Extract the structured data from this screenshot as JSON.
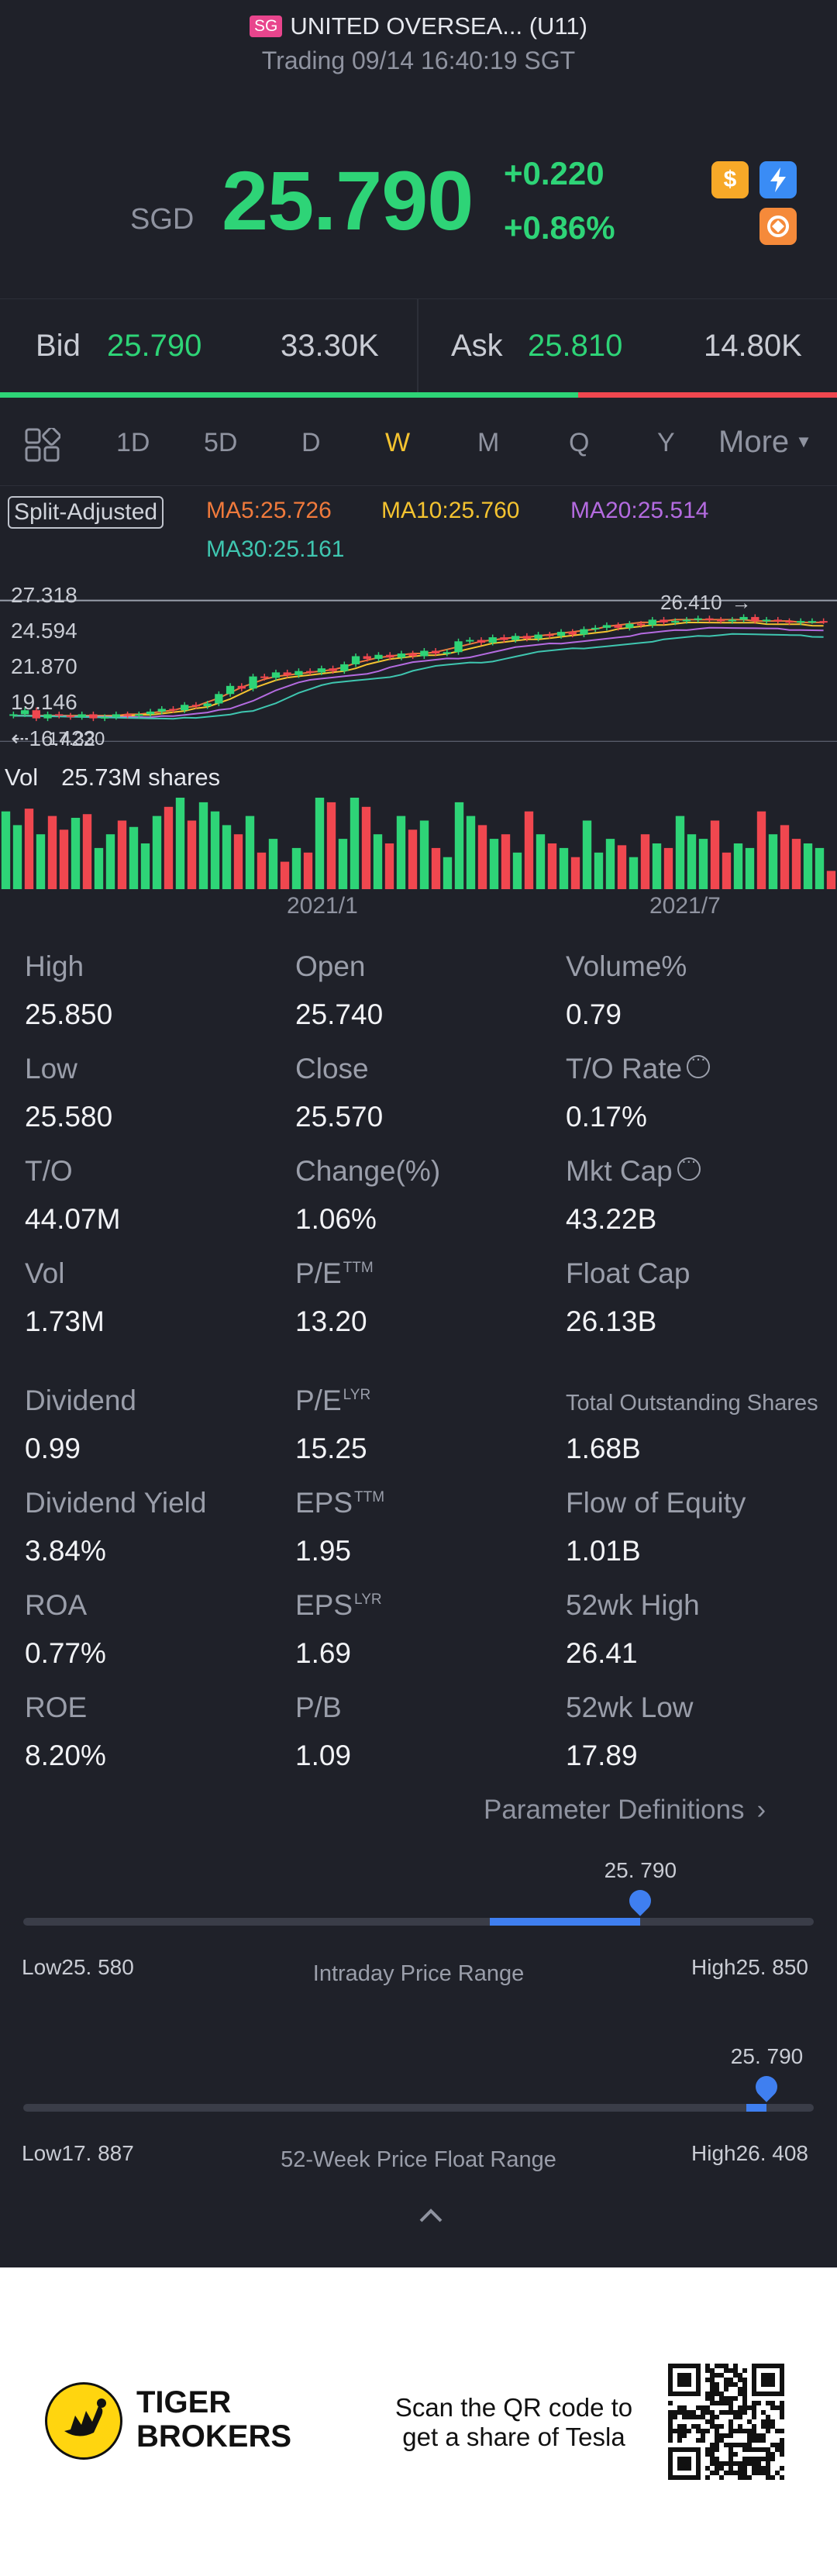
{
  "header": {
    "badge": "SG",
    "title": "UNITED OVERSEA... (U11)",
    "subtitle": "Trading 09/14 16:40:19 SGT"
  },
  "quote": {
    "currency": "SGD",
    "price": "25.790",
    "change": "+0.220",
    "change_pct": "+0.86%"
  },
  "icons": {
    "dollar": "$",
    "lightning": "lightning-icon",
    "brand": "brand-icon"
  },
  "order_book": {
    "bid_label": "Bid",
    "bid_price": "25.790",
    "bid_size": "33.30K",
    "ask_label": "Ask",
    "ask_price": "25.810",
    "ask_size": "14.80K",
    "bid_ratio": 0.69
  },
  "tabs": {
    "items": [
      "1D",
      "5D",
      "D",
      "W",
      "M",
      "Q",
      "Y"
    ],
    "active": "W",
    "more": "More"
  },
  "indicators": {
    "split": "Split-Adjusted",
    "ma5": "MA5:25.726",
    "ma10": "MA10:25.760",
    "ma20": "MA20:25.514",
    "ma30": "MA30:25.161",
    "colors": {
      "ma5": "#f07a3c",
      "ma10": "#f4c330",
      "ma20": "#b46be0",
      "ma30": "#3fc6b0"
    }
  },
  "chart_data": {
    "type": "candlestick",
    "y_ticks": [
      "27.318",
      "24.594",
      "21.870",
      "19.146"
    ],
    "y_low_overlap": "17.330",
    "y_low_overlap2": "16.422",
    "high_marker": "26.410",
    "volume_label": "Vol",
    "volume_value": "25.73M shares",
    "x_ticks": [
      "2021/1",
      "2021/7"
    ],
    "price_range": [
      16.4,
      27.3
    ],
    "closes": [
      18.9,
      19.2,
      18.6,
      18.9,
      18.8,
      18.7,
      18.9,
      18.6,
      18.7,
      18.9,
      18.8,
      18.9,
      19.1,
      19.3,
      19.2,
      19.6,
      19.5,
      19.7,
      20.4,
      21.0,
      20.8,
      21.7,
      21.6,
      22.0,
      21.8,
      22.1,
      22.0,
      22.3,
      22.1,
      22.6,
      23.2,
      23.0,
      23.3,
      23.1,
      23.4,
      23.2,
      23.6,
      23.4,
      23.5,
      24.3,
      24.4,
      24.2,
      24.6,
      24.4,
      24.7,
      24.5,
      24.8,
      24.7,
      25.0,
      24.8,
      25.2,
      25.3,
      25.5,
      25.3,
      25.6,
      25.5,
      25.9,
      25.7,
      25.8,
      25.9,
      26.0,
      25.9,
      25.8,
      25.9,
      26.1,
      25.8,
      25.9,
      25.8,
      25.7,
      25.8,
      25.8,
      25.79
    ],
    "volumes": [
      85,
      70,
      88,
      60,
      80,
      65,
      78,
      82,
      45,
      60,
      75,
      68,
      50,
      80,
      90,
      100,
      75,
      95,
      85,
      70,
      60,
      80,
      40,
      55,
      30,
      45,
      40,
      100,
      95,
      55,
      100,
      90,
      60,
      50,
      80,
      65,
      75,
      45,
      35,
      95,
      80,
      70,
      55,
      60,
      40,
      85,
      60,
      50,
      45,
      35,
      75,
      40,
      55,
      48,
      35,
      60,
      50,
      45,
      80,
      60,
      55,
      75,
      40,
      50,
      45,
      85,
      60,
      70,
      55,
      50,
      45,
      20
    ],
    "ma_series": {
      "ma5": [
        18.8,
        18.8,
        18.8,
        18.8,
        18.8,
        18.8,
        18.8,
        18.8,
        18.8,
        18.8,
        18.9,
        18.9,
        19.0,
        19.1,
        19.2,
        19.4,
        19.5,
        19.8,
        20.1,
        20.5,
        20.9,
        21.2,
        21.5,
        21.7,
        21.8,
        21.9,
        22.0,
        22.1,
        22.2,
        22.4,
        22.7,
        22.9,
        23.1,
        23.2,
        23.3,
        23.4,
        23.4,
        23.5,
        23.7,
        23.9,
        24.1,
        24.3,
        24.4,
        24.5,
        24.6,
        24.6,
        24.7,
        24.8,
        24.9,
        25.0,
        25.1,
        25.2,
        25.4,
        25.5,
        25.6,
        25.7,
        25.7,
        25.8,
        25.9,
        25.9,
        25.9,
        25.9,
        25.9,
        25.9,
        25.9,
        25.8,
        25.8,
        25.8,
        25.8,
        25.7,
        25.7,
        25.7
      ]
    }
  },
  "stats": [
    {
      "label": "High",
      "value": "25.850"
    },
    {
      "label": "Open",
      "value": "25.740"
    },
    {
      "label": "Volume%",
      "value": "0.79"
    },
    {
      "label": "Low",
      "value": "25.580"
    },
    {
      "label": "Close",
      "value": "25.570"
    },
    {
      "label": "T/O Rate",
      "value": "0.17%"
    },
    {
      "label": "T/O",
      "value": "44.07M"
    },
    {
      "label": "Change(%)",
      "value": "1.06%"
    },
    {
      "label": "Mkt Cap",
      "value": "43.22B"
    },
    {
      "label": "Vol",
      "value": "1.73M"
    },
    {
      "label": "P/E",
      "sup": "TTM",
      "value": "13.20"
    },
    {
      "label": "Float Cap",
      "value": "26.13B"
    },
    {
      "label": "Dividend",
      "value": "0.99"
    },
    {
      "label": "P/E",
      "sup": "LYR",
      "value": "15.25"
    },
    {
      "label": "Total Outstanding Shares",
      "value": "1.68B"
    },
    {
      "label": "Dividend Yield",
      "value": "3.84%"
    },
    {
      "label": "EPS",
      "sup": "TTM",
      "value": "1.95"
    },
    {
      "label": "Flow of Equity",
      "value": "1.01B"
    },
    {
      "label": "ROA",
      "value": "0.77%"
    },
    {
      "label": "EPS",
      "sup": "LYR",
      "value": "1.69"
    },
    {
      "label": "52wk High",
      "value": "26.41"
    },
    {
      "label": "ROE",
      "value": "8.20%"
    },
    {
      "label": "P/B",
      "value": "1.09"
    },
    {
      "label": "52wk Low",
      "value": "17.89"
    }
  ],
  "param_definitions": "Parameter Definitions",
  "intraday_range": {
    "current": "25. 790",
    "low": "Low25. 580",
    "high": "High25. 850",
    "caption": "Intraday Price Range",
    "fill_start": 0.59,
    "position": 0.78
  },
  "week52_range": {
    "current": "25. 790",
    "low": "Low17. 887",
    "high": "High26. 408",
    "caption": "52-Week Price Float Range",
    "fill_start": 0.915,
    "position": 0.94
  },
  "footer": {
    "brand_line1": "TIGER",
    "brand_line2": "BROKERS",
    "scan_line1": "Scan the QR code to",
    "scan_line2": "get a share of Tesla"
  }
}
